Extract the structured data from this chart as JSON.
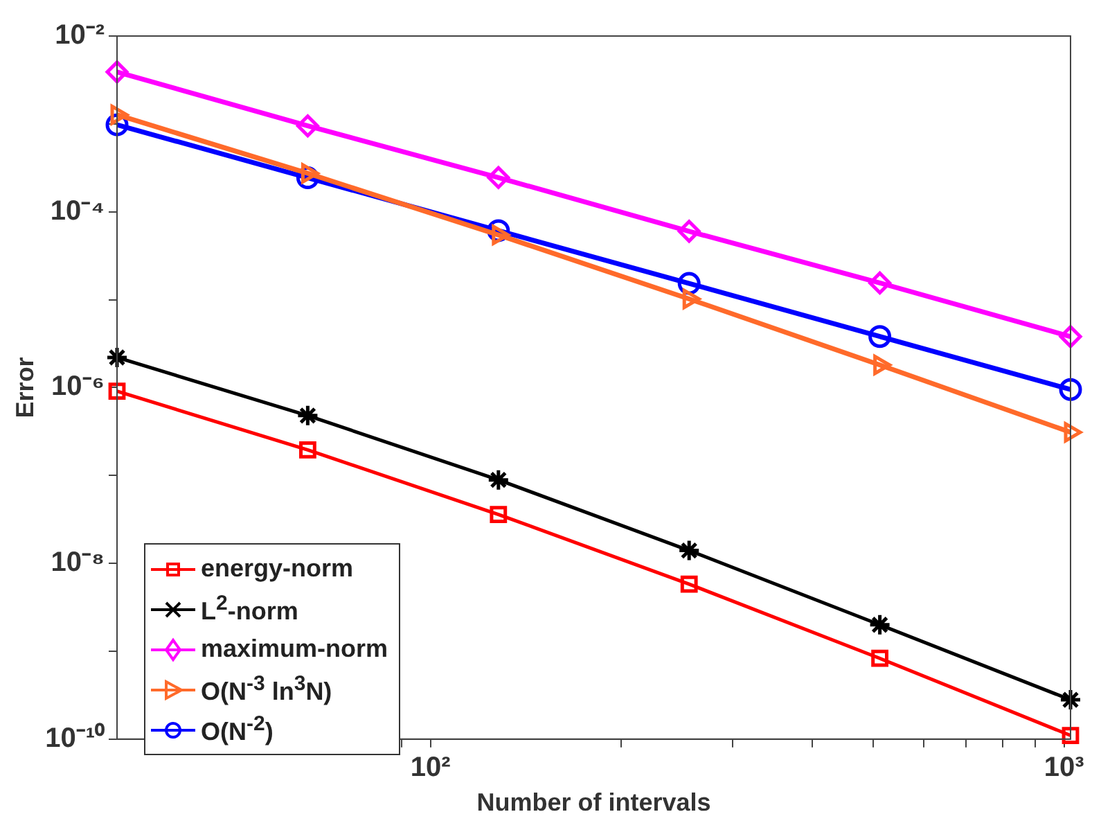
{
  "chart_data": {
    "type": "line",
    "xlabel": "Number of intervals",
    "ylabel": "Error",
    "x": [
      32,
      64,
      128,
      256,
      512,
      1024
    ],
    "log": "xy",
    "grid": false,
    "legend": "bottom left",
    "line_style": "solid",
    "xlim": [
      32,
      1024
    ],
    "ylim": [
      1e-10,
      0.01
    ],
    "xticks": [
      {
        "value": 40,
        "label": null
      },
      {
        "value": 50,
        "label": null
      },
      {
        "value": 60,
        "label": null
      },
      {
        "value": 70,
        "label": null
      },
      {
        "value": 80,
        "label": null
      },
      {
        "value": 90,
        "label": null
      },
      {
        "value": 100,
        "label": "10²"
      },
      {
        "value": 200,
        "label": null
      },
      {
        "value": 300,
        "label": null
      },
      {
        "value": 400,
        "label": null
      },
      {
        "value": 500,
        "label": null
      },
      {
        "value": 600,
        "label": null
      },
      {
        "value": 700,
        "label": null
      },
      {
        "value": 800,
        "label": null
      },
      {
        "value": 900,
        "label": null
      },
      {
        "value": 1000,
        "label": "10³"
      }
    ],
    "yticks": [
      {
        "value": 1e-10,
        "label": "10⁻¹⁰"
      },
      {
        "value": 1e-09,
        "label": null
      },
      {
        "value": 1e-08,
        "label": "10⁻⁸"
      },
      {
        "value": 1e-07,
        "label": null
      },
      {
        "value": 1e-06,
        "label": "10⁻⁶"
      },
      {
        "value": 1e-05,
        "label": null
      },
      {
        "value": 0.0001,
        "label": "10⁻⁴"
      },
      {
        "value": 0.001,
        "label": null
      },
      {
        "value": 0.01,
        "label": "10⁻²"
      }
    ],
    "series": [
      {
        "name": "energy-norm",
        "color": "#ff0000",
        "marker": "square",
        "values": [
          9.1e-07,
          1.95e-07,
          3.6e-08,
          5.8e-09,
          8.3e-10,
          1.1e-10
        ]
      },
      {
        "name": "L$^{2}$-norm",
        "color": "#000000",
        "marker": "cross",
        "values": [
          2.2e-06,
          4.8e-07,
          8.9e-08,
          1.4e-08,
          2e-09,
          2.8e-10
        ]
      },
      {
        "name": "maximum-norm",
        "color": "#ff00ff",
        "marker": "diamond",
        "values": [
          0.0039,
          0.00095,
          0.000245,
          6e-05,
          1.55e-05,
          3.8e-06
        ]
      },
      {
        "name": "O(N$^{-3}$ ln$^{3}$N)",
        "color": "#ff6a2a",
        "marker": "triangle",
        "values": [
          0.00127,
          0.000274,
          5.45e-05,
          1.02e-05,
          1.81e-06,
          3.1e-07
        ]
      },
      {
        "name": "O(N$^{-2}$)",
        "color": "#0000ff",
        "marker": "circle",
        "values": [
          0.000977,
          0.000244,
          6.1e-05,
          1.53e-05,
          3.81e-06,
          9.5e-07
        ]
      }
    ]
  }
}
